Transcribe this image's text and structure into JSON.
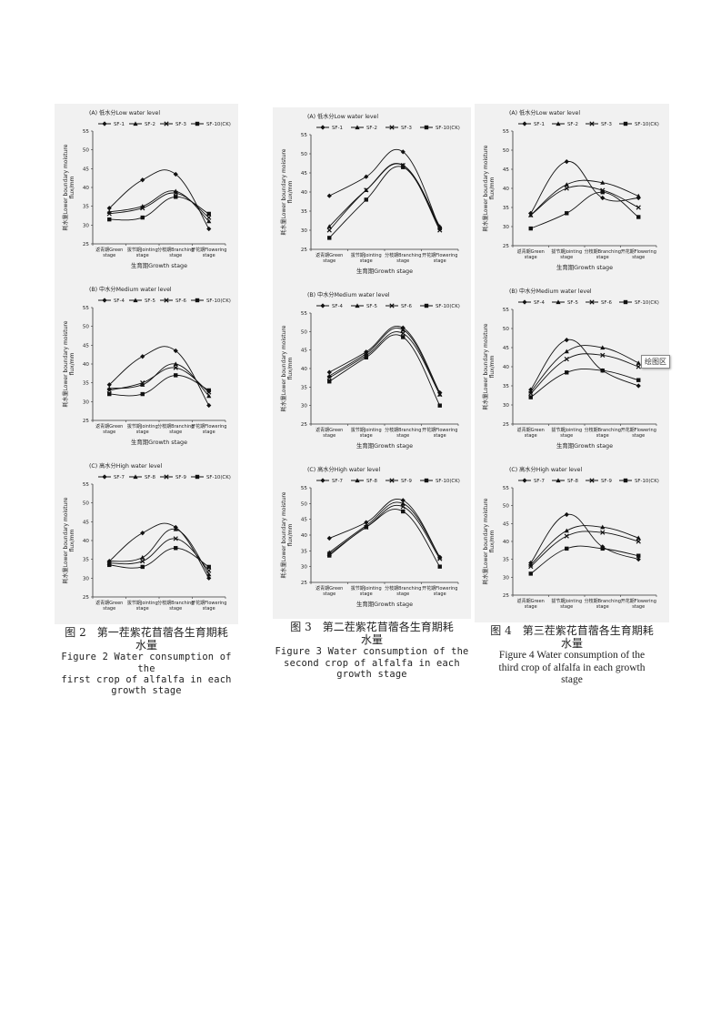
{
  "figures": [
    {
      "caption_zh": "图 2　第一茬紫花苜蓿各生育期耗水量",
      "caption_zh_l1": "图 2　第一茬紫花苜蓿各生育期耗",
      "caption_zh_l2": "水量",
      "caption_en": [
        "Figure 2 Water consumption of the",
        "first crop of alfalfa in each",
        "growth stage"
      ]
    },
    {
      "caption_zh": "图 3　第二茬紫花苜蓿各生育期耗水量",
      "caption_zh_l1": "图 3　第二茬紫花苜蓿各生育期耗",
      "caption_zh_l2": "水量",
      "caption_en": [
        "Figure 3 Water consumption of the",
        "second crop of alfalfa in each",
        "growth stage"
      ]
    },
    {
      "caption_zh": "图 4　第三茬紫花苜蓿各生育期耗水量",
      "caption_zh_l1": "图 4　第三茬紫花苜蓿各生育期耗",
      "caption_zh_l2": "水量",
      "caption_en": [
        "Figure 4 Water consumption of the",
        "third crop of alfalfa in each growth",
        "stage"
      ]
    }
  ],
  "tooltip_text": "绘图区",
  "chart_data": [
    {
      "figure": 2,
      "type": "line",
      "title": "(A) 低水分Low water level",
      "ylabel": "耗水量Lower boundary moisture flux/mm",
      "xlabel": "生育期Growth stage",
      "categories": [
        "返青期Green stage",
        "拔节期Jointing stage",
        "分枝期Branching stage",
        "开花期Flowering stage"
      ],
      "ylim": [
        25,
        55
      ],
      "yticks": [
        25,
        30,
        35,
        40,
        45,
        50,
        55
      ],
      "series": [
        {
          "name": "SF-1",
          "values": [
            34.5,
            42,
            43.5,
            29
          ]
        },
        {
          "name": "SF-2",
          "values": [
            33.5,
            35,
            39,
            31
          ]
        },
        {
          "name": "SF-3",
          "values": [
            33,
            34.5,
            38.5,
            32
          ]
        },
        {
          "name": "SF-10(CK)",
          "values": [
            31.5,
            32,
            37.5,
            33
          ]
        }
      ]
    },
    {
      "figure": 2,
      "type": "line",
      "title": "(B) 中水分Medium water level",
      "ylabel": "耗水量Lower boundary moisture flux/mm",
      "xlabel": "生育期Growth stage",
      "categories": [
        "返青期Green stage",
        "拔节期Jointing stage",
        "分枝期Branching stage",
        "开花期Flowering stage"
      ],
      "ylim": [
        25,
        55
      ],
      "yticks": [
        25,
        30,
        35,
        40,
        45,
        50,
        55
      ],
      "series": [
        {
          "name": "SF-4",
          "values": [
            34.5,
            42,
            43.5,
            29
          ]
        },
        {
          "name": "SF-5",
          "values": [
            33.5,
            34.5,
            40,
            31.5
          ]
        },
        {
          "name": "SF-6",
          "values": [
            33,
            35,
            39,
            32.5
          ]
        },
        {
          "name": "SF-10(CK)",
          "values": [
            32,
            32,
            37,
            33
          ]
        }
      ]
    },
    {
      "figure": 2,
      "type": "line",
      "title": "(C) 高水分High water level",
      "ylabel": "耗水量Lower boundary moisture flux/mm",
      "xlabel": "",
      "categories": [
        "返青期Green stage",
        "拔节期Jointing stage",
        "分枝期Branching stage",
        "开花期Flowering stage"
      ],
      "ylim": [
        25,
        55
      ],
      "yticks": [
        25,
        30,
        35,
        40,
        45,
        50,
        55
      ],
      "series": [
        {
          "name": "SF-7",
          "values": [
            34.5,
            42,
            43.5,
            30
          ]
        },
        {
          "name": "SF-8",
          "values": [
            34.5,
            35.5,
            43,
            31
          ]
        },
        {
          "name": "SF-9",
          "values": [
            34,
            34.5,
            40.5,
            32
          ]
        },
        {
          "name": "SF-10(CK)",
          "values": [
            33.5,
            33,
            38,
            33
          ]
        }
      ]
    },
    {
      "figure": 3,
      "type": "line",
      "title": "(A) 低水分Low water level",
      "ylabel": "耗水量Lower boundary moisture flux/mm",
      "xlabel": "生育期Growth stage",
      "categories": [
        "返青期Green stage",
        "拔节期Jointing stage",
        "分枝期Branching stage",
        "开花期Flowering stage"
      ],
      "ylim": [
        25,
        55
      ],
      "yticks": [
        25,
        30,
        35,
        40,
        45,
        50,
        55
      ],
      "series": [
        {
          "name": "SF-1",
          "values": [
            39,
            44,
            50.5,
            30.5
          ]
        },
        {
          "name": "SF-2",
          "values": [
            31,
            40.5,
            47,
            31
          ]
        },
        {
          "name": "SF-3",
          "values": [
            30,
            40.5,
            47,
            30
          ]
        },
        {
          "name": "SF-10(CK)",
          "values": [
            28,
            38,
            46.5,
            30.5
          ]
        }
      ]
    },
    {
      "figure": 3,
      "type": "line",
      "title": "(B) 中水分Medium water level",
      "ylabel": "耗水量Lower boundary moisture flux/mm",
      "xlabel": "生育期Growth stage",
      "categories": [
        "返青期Green stage",
        "拔节期Jointing stage",
        "分枝期Branching stage",
        "开花期Flowering stage"
      ],
      "ylim": [
        25,
        55
      ],
      "yticks": [
        25,
        30,
        35,
        40,
        45,
        50,
        55
      ],
      "series": [
        {
          "name": "SF-4",
          "values": [
            39,
            44.5,
            51,
            33.5
          ]
        },
        {
          "name": "SF-5",
          "values": [
            38,
            44,
            50.5,
            33
          ]
        },
        {
          "name": "SF-6",
          "values": [
            37.5,
            43.5,
            49.5,
            33
          ]
        },
        {
          "name": "SF-10(CK)",
          "values": [
            36.5,
            43,
            48.5,
            30
          ]
        }
      ]
    },
    {
      "figure": 3,
      "type": "line",
      "title": "(C) 高水分High water level",
      "ylabel": "耗水量Lower boundary moisture flux/mm",
      "xlabel": "生育期Growth stage",
      "categories": [
        "返青期Green stage",
        "拔节期Jointing stage",
        "分枝期Branching stage",
        "开花期Flowering stage"
      ],
      "ylim": [
        25,
        55
      ],
      "yticks": [
        25,
        30,
        35,
        40,
        45,
        50,
        55
      ],
      "series": [
        {
          "name": "SF-7",
          "values": [
            39,
            44,
            51,
            33
          ]
        },
        {
          "name": "SF-8",
          "values": [
            34.5,
            43,
            50,
            33
          ]
        },
        {
          "name": "SF-9",
          "values": [
            34,
            42.5,
            49,
            32.5
          ]
        },
        {
          "name": "SF-10(CK)",
          "values": [
            33.5,
            42.5,
            47.5,
            30
          ]
        }
      ]
    },
    {
      "figure": 4,
      "type": "line",
      "title": "(A) 低水分Low water level",
      "ylabel": "耗水量Lower boundary moisture flux/mm",
      "xlabel": "生育期Growth stage",
      "categories": [
        "返青期Green stage",
        "拔节期Jointing stage",
        "分枝期Branching stage",
        "开花期Flowering stage"
      ],
      "ylim": [
        25,
        55
      ],
      "yticks": [
        25,
        30,
        35,
        40,
        45,
        50,
        55
      ],
      "series": [
        {
          "name": "SF-1",
          "values": [
            33.5,
            47,
            37.5,
            37.5
          ]
        },
        {
          "name": "SF-2",
          "values": [
            33,
            41,
            41.5,
            38
          ]
        },
        {
          "name": "SF-3",
          "values": [
            33,
            40,
            39.5,
            35
          ]
        },
        {
          "name": "SF-10(CK)",
          "values": [
            29.5,
            33.5,
            39,
            32.5
          ]
        }
      ]
    },
    {
      "figure": 4,
      "type": "line",
      "title": "(B) 中水分Medium water level",
      "ylabel": "耗水量Lower boundary moisture flux/mm",
      "xlabel": "生育期Growth stage",
      "categories": [
        "返青期Green stage",
        "拔节期Jointing stage",
        "分枝期Branching stage",
        "开花期Flowering stage"
      ],
      "ylim": [
        25,
        55
      ],
      "yticks": [
        25,
        30,
        35,
        40,
        45,
        50,
        55
      ],
      "series": [
        {
          "name": "SF-4",
          "values": [
            34,
            47,
            39,
            35
          ]
        },
        {
          "name": "SF-5",
          "values": [
            33.5,
            44,
            45,
            41
          ]
        },
        {
          "name": "SF-6",
          "values": [
            33,
            42,
            43,
            40
          ]
        },
        {
          "name": "SF-10(CK)",
          "values": [
            32,
            38.5,
            39,
            36.5
          ]
        }
      ]
    },
    {
      "figure": 4,
      "type": "line",
      "title": "(C) 高水分High water level",
      "ylabel": "耗水量Lower boundary moisture flux/mm",
      "xlabel": "",
      "categories": [
        "返青期Green stage",
        "拔节期Jointing stage",
        "分枝期Branching stage",
        "开花期Flowering stage"
      ],
      "ylim": [
        25,
        55
      ],
      "yticks": [
        25,
        30,
        35,
        40,
        45,
        50,
        55
      ],
      "series": [
        {
          "name": "SF-7",
          "values": [
            34,
            47.5,
            38.5,
            35
          ]
        },
        {
          "name": "SF-8",
          "values": [
            33.5,
            43,
            44,
            41
          ]
        },
        {
          "name": "SF-9",
          "values": [
            33,
            41.5,
            42.5,
            40
          ]
        },
        {
          "name": "SF-10(CK)",
          "values": [
            31,
            38,
            38,
            36
          ]
        }
      ]
    }
  ]
}
